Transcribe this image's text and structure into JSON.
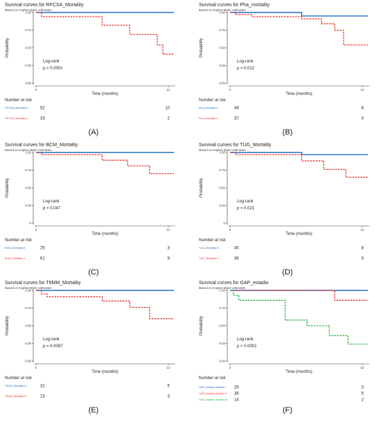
{
  "figure": {
    "style": {
      "col_blue": "#1f6fc4",
      "col_red": "#e8312b",
      "col_green": "#2bb34a",
      "axis_color": "#333333"
    },
    "panels": [
      {
        "id": "A",
        "title": "Survival curves for RFCSA_Mortality",
        "subtitle": "Based on Kaplan-Meier estimates",
        "ylabel": "Probability",
        "xlabel": "Time (months)",
        "yticks": [
          "0.00",
          "0.25",
          "0.50",
          "0.75",
          "1.00"
        ],
        "xticks": [
          {
            "v": 0,
            "label": "0"
          },
          {
            "v": 12,
            "label": "12"
          }
        ],
        "logrank_label": "Log-rank",
        "pvalue": "p < 0.0001",
        "risk_title": "Number at risk",
        "risk": [
          {
            "label": "RFCSA_Mortality=0",
            "n0": "52",
            "n12": "10",
            "color": "#1f6fc4"
          },
          {
            "label": "RFCSA_Mortality=1",
            "n0": "33",
            "n12": "2",
            "color": "#e8312b"
          }
        ],
        "caption": "(A)"
      },
      {
        "id": "B",
        "title": "Survival curves for Pha_mortality",
        "subtitle": "Based on Kaplan-Meier estimates",
        "ylabel": "Probability",
        "xlabel": "Time (months)",
        "yticks": [
          "0.00",
          "0.25",
          "0.50",
          "0.75",
          "1.00"
        ],
        "xticks": [
          {
            "v": 0,
            "label": "0"
          },
          {
            "v": 12,
            "label": "12"
          }
        ],
        "logrank_label": "Log-rank",
        "pvalue": "p = 0.012",
        "risk_title": "Number at risk",
        "risk": [
          {
            "label": "Pha_mortality=0",
            "n0": "49",
            "n12": "8",
            "color": "#1f6fc4"
          },
          {
            "label": "Pha_mortality=1",
            "n0": "37",
            "n12": "4",
            "color": "#e8312b"
          }
        ],
        "caption": "(B)"
      },
      {
        "id": "C",
        "title": "Survival curves for BCM_Mortality",
        "subtitle": "Based on Kaplan-Meier estimates",
        "ylabel": "Probability",
        "xlabel": "Time (months)",
        "yticks": [
          "0",
          "0.25",
          "0.50",
          "0.75",
          "1.00"
        ],
        "xticks": [
          {
            "v": 0,
            "label": "0"
          },
          {
            "v": 12,
            "label": "12"
          }
        ],
        "logrank_label": "Log-rank",
        "pvalue": "p = 0.047",
        "risk_title": "Number at risk",
        "risk": [
          {
            "label": "BCM_Mortality=0",
            "n0": "25",
            "n12": "3",
            "color": "#1f6fc4"
          },
          {
            "label": "BCM_Mortality=1",
            "n0": "61",
            "n12": "9",
            "color": "#e8312b"
          }
        ],
        "caption": "(C)"
      },
      {
        "id": "D",
        "title": "Survival curves for TUG_Mortality",
        "subtitle": "Based on Kaplan-Meier estimates",
        "ylabel": "Probability",
        "xlabel": "Time (months)",
        "yticks": [
          "0",
          "0.25",
          "0.50",
          "0.75",
          "1.00"
        ],
        "xticks": [
          {
            "v": 0,
            "label": "0"
          },
          {
            "v": 12,
            "label": "12"
          }
        ],
        "logrank_label": "Log-rank",
        "pvalue": "p = 0.021",
        "risk_title": "Number at risk",
        "risk": [
          {
            "label": "TUG_Mortality=0",
            "n0": "45",
            "n12": "8",
            "color": "#1f6fc4"
          },
          {
            "label": "TUG_Mortality=1",
            "n0": "36",
            "n12": "5",
            "color": "#e8312b"
          }
        ],
        "caption": "(D)"
      },
      {
        "id": "E",
        "title": "Survival curves for T6MM_Mortality",
        "subtitle": "Based on Kaplan-Meier estimates",
        "ylabel": "Probability",
        "xlabel": "Time (months)",
        "yticks": [
          "0.00",
          "0.25",
          "0.50",
          "0.75",
          "1.00"
        ],
        "xticks": [
          {
            "v": 0,
            "label": "0"
          },
          {
            "v": 12,
            "label": "12"
          }
        ],
        "logrank_label": "Log-rank",
        "pvalue": "p = 0.0087",
        "risk_title": "Number at risk",
        "risk": [
          {
            "label": "T6MM_Mortality=0",
            "n0": "31",
            "n12": "5",
            "color": "#1f6fc4"
          },
          {
            "label": "T6MM_Mortality=1",
            "n0": "23",
            "n12": "3",
            "color": "#e8312b"
          }
        ],
        "caption": "(E)"
      },
      {
        "id": "F",
        "title": "Survival curves for GAP_estadio",
        "subtitle": "Based on Kaplan-Meier estimates",
        "ylabel": "Probability",
        "xlabel": "Time (months)",
        "yticks": [
          "0.00",
          "0.25",
          "0.50",
          "0.75",
          "1.00"
        ],
        "xticks": [
          {
            "v": 0,
            "label": "0"
          },
          {
            "v": 12,
            "label": "12"
          }
        ],
        "logrank_label": "Log-rank",
        "pvalue": "p < 0.0001",
        "risk_title": "Number at risk",
        "risk": [
          {
            "label": "GAP_estadio=Estadio I",
            "n0": "26",
            "n12": "3",
            "color": "#1f6fc4"
          },
          {
            "label": "GAP_estadio=Estadio II",
            "n0": "36",
            "n12": "5",
            "color": "#e8312b"
          },
          {
            "label": "GAP_estadio=Estadio III",
            "n0": "14",
            "n12": "2",
            "color": "#2bb34a"
          }
        ],
        "caption": "(F)"
      }
    ]
  },
  "chart_data": [
    {
      "type": "line",
      "title": "Survival curves for RFCSA_Mortality",
      "subtitle": "Based on Kaplan-Meier estimates",
      "xlabel": "Time (months)",
      "ylabel": "Probability",
      "xlim": [
        0,
        12.5
      ],
      "ylim": [
        0,
        1
      ],
      "series": [
        {
          "name": "RFCSA_Mortality=0",
          "color": "#1f6fc4",
          "linestyle": "solid",
          "x": [
            0,
            12.5
          ],
          "y": [
            1.0,
            1.0
          ]
        },
        {
          "name": "RFCSA_Mortality=1",
          "color": "#e8312b",
          "linestyle": "dashed",
          "x": [
            0,
            0.5,
            6,
            8.5,
            11,
            11.5,
            12.5
          ],
          "y": [
            1.0,
            0.94,
            0.82,
            0.69,
            0.54,
            0.41,
            0.41
          ]
        }
      ]
    },
    {
      "type": "line",
      "title": "Survival curves for Pha_mortality",
      "subtitle": "Based on Kaplan-Meier estimates",
      "xlabel": "Time (months)",
      "ylabel": "Probability",
      "xlim": [
        0,
        12.5
      ],
      "ylim": [
        0,
        1
      ],
      "series": [
        {
          "name": "Pha_mortality=0",
          "color": "#1f6fc4",
          "linestyle": "solid",
          "x": [
            0,
            6.5,
            12.5
          ],
          "y": [
            1.0,
            0.95,
            0.95
          ]
        },
        {
          "name": "Pha_mortality=1",
          "color": "#e8312b",
          "linestyle": "dashed",
          "x": [
            0,
            0.5,
            2,
            6.5,
            8.3,
            9.5,
            10.3,
            12.5
          ],
          "y": [
            1.0,
            0.97,
            0.94,
            0.91,
            0.84,
            0.75,
            0.54,
            0.54
          ]
        }
      ]
    },
    {
      "type": "line",
      "title": "Survival curves for BCM_Mortality",
      "subtitle": "Based on Kaplan-Meier estimates",
      "xlabel": "Time (months)",
      "ylabel": "Probability",
      "xlim": [
        0,
        12.5
      ],
      "ylim": [
        0,
        1
      ],
      "series": [
        {
          "name": "BCM_Mortality=0",
          "color": "#1f6fc4",
          "linestyle": "solid",
          "x": [
            0,
            12.5
          ],
          "y": [
            1.0,
            1.0
          ]
        },
        {
          "name": "BCM_Mortality=1",
          "color": "#e8312b",
          "linestyle": "dashed",
          "x": [
            0,
            0.5,
            6,
            8.3,
            10.3,
            12.5
          ],
          "y": [
            1.0,
            0.97,
            0.89,
            0.81,
            0.7,
            0.7
          ]
        }
      ]
    },
    {
      "type": "line",
      "title": "Survival curves for TUG_Mortality",
      "subtitle": "Based on Kaplan-Meier estimates",
      "xlabel": "Time (months)",
      "ylabel": "Probability",
      "xlim": [
        0,
        12.5
      ],
      "ylim": [
        0,
        1
      ],
      "series": [
        {
          "name": "TUG_Mortality=0",
          "color": "#1f6fc4",
          "linestyle": "solid",
          "x": [
            0,
            6.5,
            12.5
          ],
          "y": [
            1.0,
            0.97,
            0.97
          ]
        },
        {
          "name": "TUG_Mortality=1",
          "color": "#e8312b",
          "linestyle": "dashed",
          "x": [
            0,
            0.5,
            6.5,
            8.5,
            10.5,
            12.5
          ],
          "y": [
            1.0,
            0.97,
            0.88,
            0.76,
            0.65,
            0.65
          ]
        }
      ]
    },
    {
      "type": "line",
      "title": "Survival curves for T6MM_Mortality",
      "subtitle": "Based on Kaplan-Meier estimates",
      "xlabel": "Time (months)",
      "ylabel": "Probability",
      "xlim": [
        0,
        12.5
      ],
      "ylim": [
        0,
        1
      ],
      "series": [
        {
          "name": "T6MM_Mortality=0",
          "color": "#1f6fc4",
          "linestyle": "solid",
          "x": [
            0,
            12.5
          ],
          "y": [
            1.0,
            1.0
          ]
        },
        {
          "name": "T6MM_Mortality=1",
          "color": "#e8312b",
          "linestyle": "dashed",
          "x": [
            0,
            0.5,
            1,
            6,
            8.5,
            10.3,
            12.5
          ],
          "y": [
            1.0,
            0.95,
            0.91,
            0.85,
            0.76,
            0.6,
            0.6
          ]
        }
      ]
    },
    {
      "type": "line",
      "title": "Survival curves for GAP_estadio",
      "subtitle": "Based on Kaplan-Meier estimates",
      "xlabel": "Time (months)",
      "ylabel": "Probability",
      "xlim": [
        0,
        12.5
      ],
      "ylim": [
        0,
        1
      ],
      "series": [
        {
          "name": "GAP_estadio=Estadio I",
          "color": "#1f6fc4",
          "linestyle": "solid",
          "x": [
            0,
            12.5
          ],
          "y": [
            1.0,
            1.0
          ]
        },
        {
          "name": "GAP_estadio=Estadio II",
          "color": "#e8312b",
          "linestyle": "dashed",
          "x": [
            0,
            9.5,
            12.5
          ],
          "y": [
            1.0,
            0.86,
            0.86
          ]
        },
        {
          "name": "GAP_estadio=Estadio III",
          "color": "#2bb34a",
          "linestyle": "dashed",
          "x": [
            0,
            0.3,
            0.8,
            5,
            7,
            9,
            10.7,
            12.5
          ],
          "y": [
            1.0,
            0.93,
            0.86,
            0.58,
            0.5,
            0.36,
            0.24,
            0.24
          ]
        }
      ]
    }
  ]
}
